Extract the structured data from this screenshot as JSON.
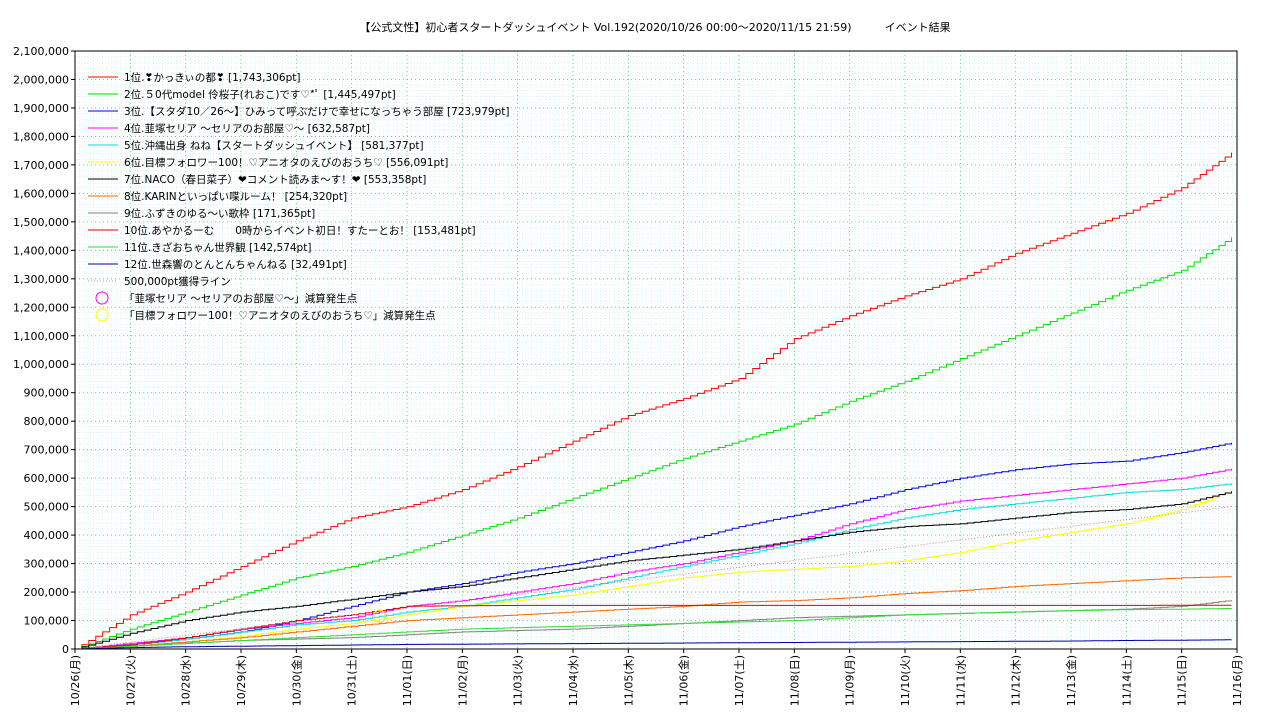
{
  "chart_data": {
    "type": "line",
    "title": "【公式文性】初心者スタートダッシュイベント Vol.192(2020/10/26 00:00〜2020/11/15 21:59)　　　イベント結果",
    "xlabel": "",
    "ylabel": "",
    "ylim": [
      0,
      2100000
    ],
    "yticks": [
      "0",
      "100,000",
      "200,000",
      "300,000",
      "400,000",
      "500,000",
      "600,000",
      "700,000",
      "800,000",
      "900,000",
      "1,000,000",
      "1,100,000",
      "1,200,000",
      "1,300,000",
      "1,400,000",
      "1,500,000",
      "1,600,000",
      "1,700,000",
      "1,800,000",
      "1,900,000",
      "2,000,000",
      "2,100,000"
    ],
    "xticks": [
      "10/26(月)",
      "10/27(火)",
      "10/28(水)",
      "10/29(木)",
      "10/30(金)",
      "10/31(土)",
      "11/01(日)",
      "11/02(月)",
      "11/03(火)",
      "11/04(水)",
      "11/05(木)",
      "11/06(金)",
      "11/07(土)",
      "11/08(日)",
      "11/09(月)",
      "11/10(火)",
      "11/11(水)",
      "11/12(木)",
      "11/13(金)",
      "11/14(土)",
      "11/15(日)",
      "11/16(月)"
    ],
    "grid": true,
    "legend_position": "top-left",
    "days": [
      0,
      1,
      2,
      3,
      4,
      5,
      6,
      7,
      8,
      9,
      10,
      11,
      12,
      13,
      14,
      15,
      16,
      17,
      18,
      19,
      20,
      20.9
    ],
    "series": [
      {
        "name": "1位.❣かっきぃの都❣ [1,743,306pt]",
        "color": "#ff0000",
        "values": [
          0,
          120000,
          200000,
          290000,
          380000,
          460000,
          500000,
          560000,
          640000,
          730000,
          820000,
          880000,
          950000,
          1090000,
          1170000,
          1240000,
          1300000,
          1390000,
          1460000,
          1530000,
          1620000,
          1743306
        ]
      },
      {
        "name": "2位.５0代model 伶桜子(れおこ)です♡*ﾟ [1,445,497pt]",
        "color": "#00dd00",
        "values": [
          0,
          70000,
          130000,
          190000,
          250000,
          290000,
          340000,
          400000,
          460000,
          530000,
          600000,
          670000,
          730000,
          790000,
          870000,
          940000,
          1020000,
          1100000,
          1180000,
          1260000,
          1330000,
          1445497
        ]
      },
      {
        "name": "3位.【スタダ10／26〜】ひみって呼ぶだけで幸せになっちゃう部屋 [723,979pt]",
        "color": "#0000dd",
        "values": [
          0,
          15000,
          35000,
          60000,
          100000,
          150000,
          200000,
          230000,
          270000,
          300000,
          340000,
          380000,
          430000,
          470000,
          510000,
          560000,
          600000,
          630000,
          650000,
          660000,
          690000,
          723979
        ]
      },
      {
        "name": "4位.韮塚セリア 〜セリアのお部屋♡〜 [632,587pt]",
        "color": "#ff00ff",
        "values": [
          0,
          20000,
          40000,
          70000,
          90000,
          110000,
          150000,
          170000,
          200000,
          230000,
          270000,
          300000,
          340000,
          380000,
          440000,
          490000,
          520000,
          540000,
          560000,
          580000,
          600000,
          632587
        ]
      },
      {
        "name": "5位.沖縄出身 ねね【スタートダッシュイベント】 [581,377pt]",
        "color": "#00dddd",
        "values": [
          0,
          15000,
          35000,
          60000,
          85000,
          100000,
          130000,
          150000,
          180000,
          210000,
          250000,
          290000,
          330000,
          370000,
          420000,
          460000,
          490000,
          510000,
          530000,
          550000,
          560000,
          581377
        ]
      },
      {
        "name": "6位.目標フォロワー100！♡アニオタのえびのおうち♡ [556,091pt]",
        "color": "#ffff00",
        "values": [
          0,
          10000,
          25000,
          45000,
          70000,
          90000,
          120000,
          150000,
          170000,
          190000,
          220000,
          250000,
          270000,
          280000,
          290000,
          310000,
          340000,
          380000,
          410000,
          440000,
          490000,
          556091
        ]
      },
      {
        "name": "7位.NACO（春日菜子）❤コメント読みま〜す！❤ [553,358pt]",
        "color": "#000000",
        "values": [
          0,
          55000,
          100000,
          130000,
          150000,
          175000,
          200000,
          220000,
          250000,
          280000,
          310000,
          330000,
          350000,
          380000,
          410000,
          430000,
          440000,
          460000,
          480000,
          490000,
          510000,
          553358
        ]
      },
      {
        "name": "8位.KARINといっぱい喋ルーム！ [254,320pt]",
        "color": "#ff6600",
        "values": [
          0,
          10000,
          25000,
          40000,
          60000,
          80000,
          100000,
          110000,
          120000,
          130000,
          140000,
          150000,
          165000,
          170000,
          180000,
          195000,
          205000,
          220000,
          230000,
          240000,
          250000,
          254320
        ]
      },
      {
        "name": "9位.ふずきのゆる〜い歌枠 [171,365pt]",
        "color": "#808080",
        "values": [
          0,
          10000,
          20000,
          30000,
          35000,
          40000,
          50000,
          60000,
          65000,
          70000,
          80000,
          90000,
          100000,
          110000,
          115000,
          120000,
          125000,
          130000,
          135000,
          140000,
          150000,
          171365
        ]
      },
      {
        "name": "10位.あやかるーむ　　0時からイベント初日！すたーとお！ [153,481pt]",
        "color": "#dd0000",
        "values": [
          0,
          15000,
          40000,
          70000,
          100000,
          120000,
          150000,
          152000,
          153000,
          153000,
          153000,
          153000,
          153000,
          153000,
          153000,
          153000,
          153000,
          153000,
          153000,
          153000,
          153481,
          153481
        ]
      },
      {
        "name": "11位.きざおちゃん世界観 [142,574pt]",
        "color": "#33dd33",
        "values": [
          0,
          10000,
          20000,
          30000,
          40000,
          50000,
          60000,
          70000,
          75000,
          80000,
          85000,
          90000,
          95000,
          100000,
          110000,
          120000,
          125000,
          130000,
          135000,
          138000,
          140000,
          142574
        ]
      },
      {
        "name": "12位.世森響のとんとんちゃんねる [32,491pt]",
        "color": "#0000aa",
        "values": [
          0,
          5000,
          8000,
          10000,
          12000,
          14000,
          16000,
          17000,
          18000,
          19000,
          20000,
          21000,
          22000,
          23000,
          24000,
          25000,
          26000,
          27000,
          28000,
          30000,
          31000,
          32491
        ]
      },
      {
        "name": "500,000pt獲得ライン",
        "color": "#cc8888",
        "dashed": true,
        "values": [
          0,
          23923,
          47846,
          71770,
          95693,
          119617,
          143540,
          167464,
          191387,
          215311,
          239234,
          263158,
          287081,
          311005,
          334928,
          358852,
          382775,
          406699,
          430622,
          454545,
          478469,
          500000
        ]
      }
    ],
    "markers": [
      {
        "label": "「韮塚セリア 〜セリアのお部屋♡〜」減算発生点",
        "color": "#ff00ff",
        "day": 5.5,
        "value": 115000
      },
      {
        "label": "「目標フォロワー100！♡アニオタのえびのおうち♡」減算発生点",
        "color": "#ffff00",
        "day": 5.5,
        "value": 115000
      }
    ]
  }
}
